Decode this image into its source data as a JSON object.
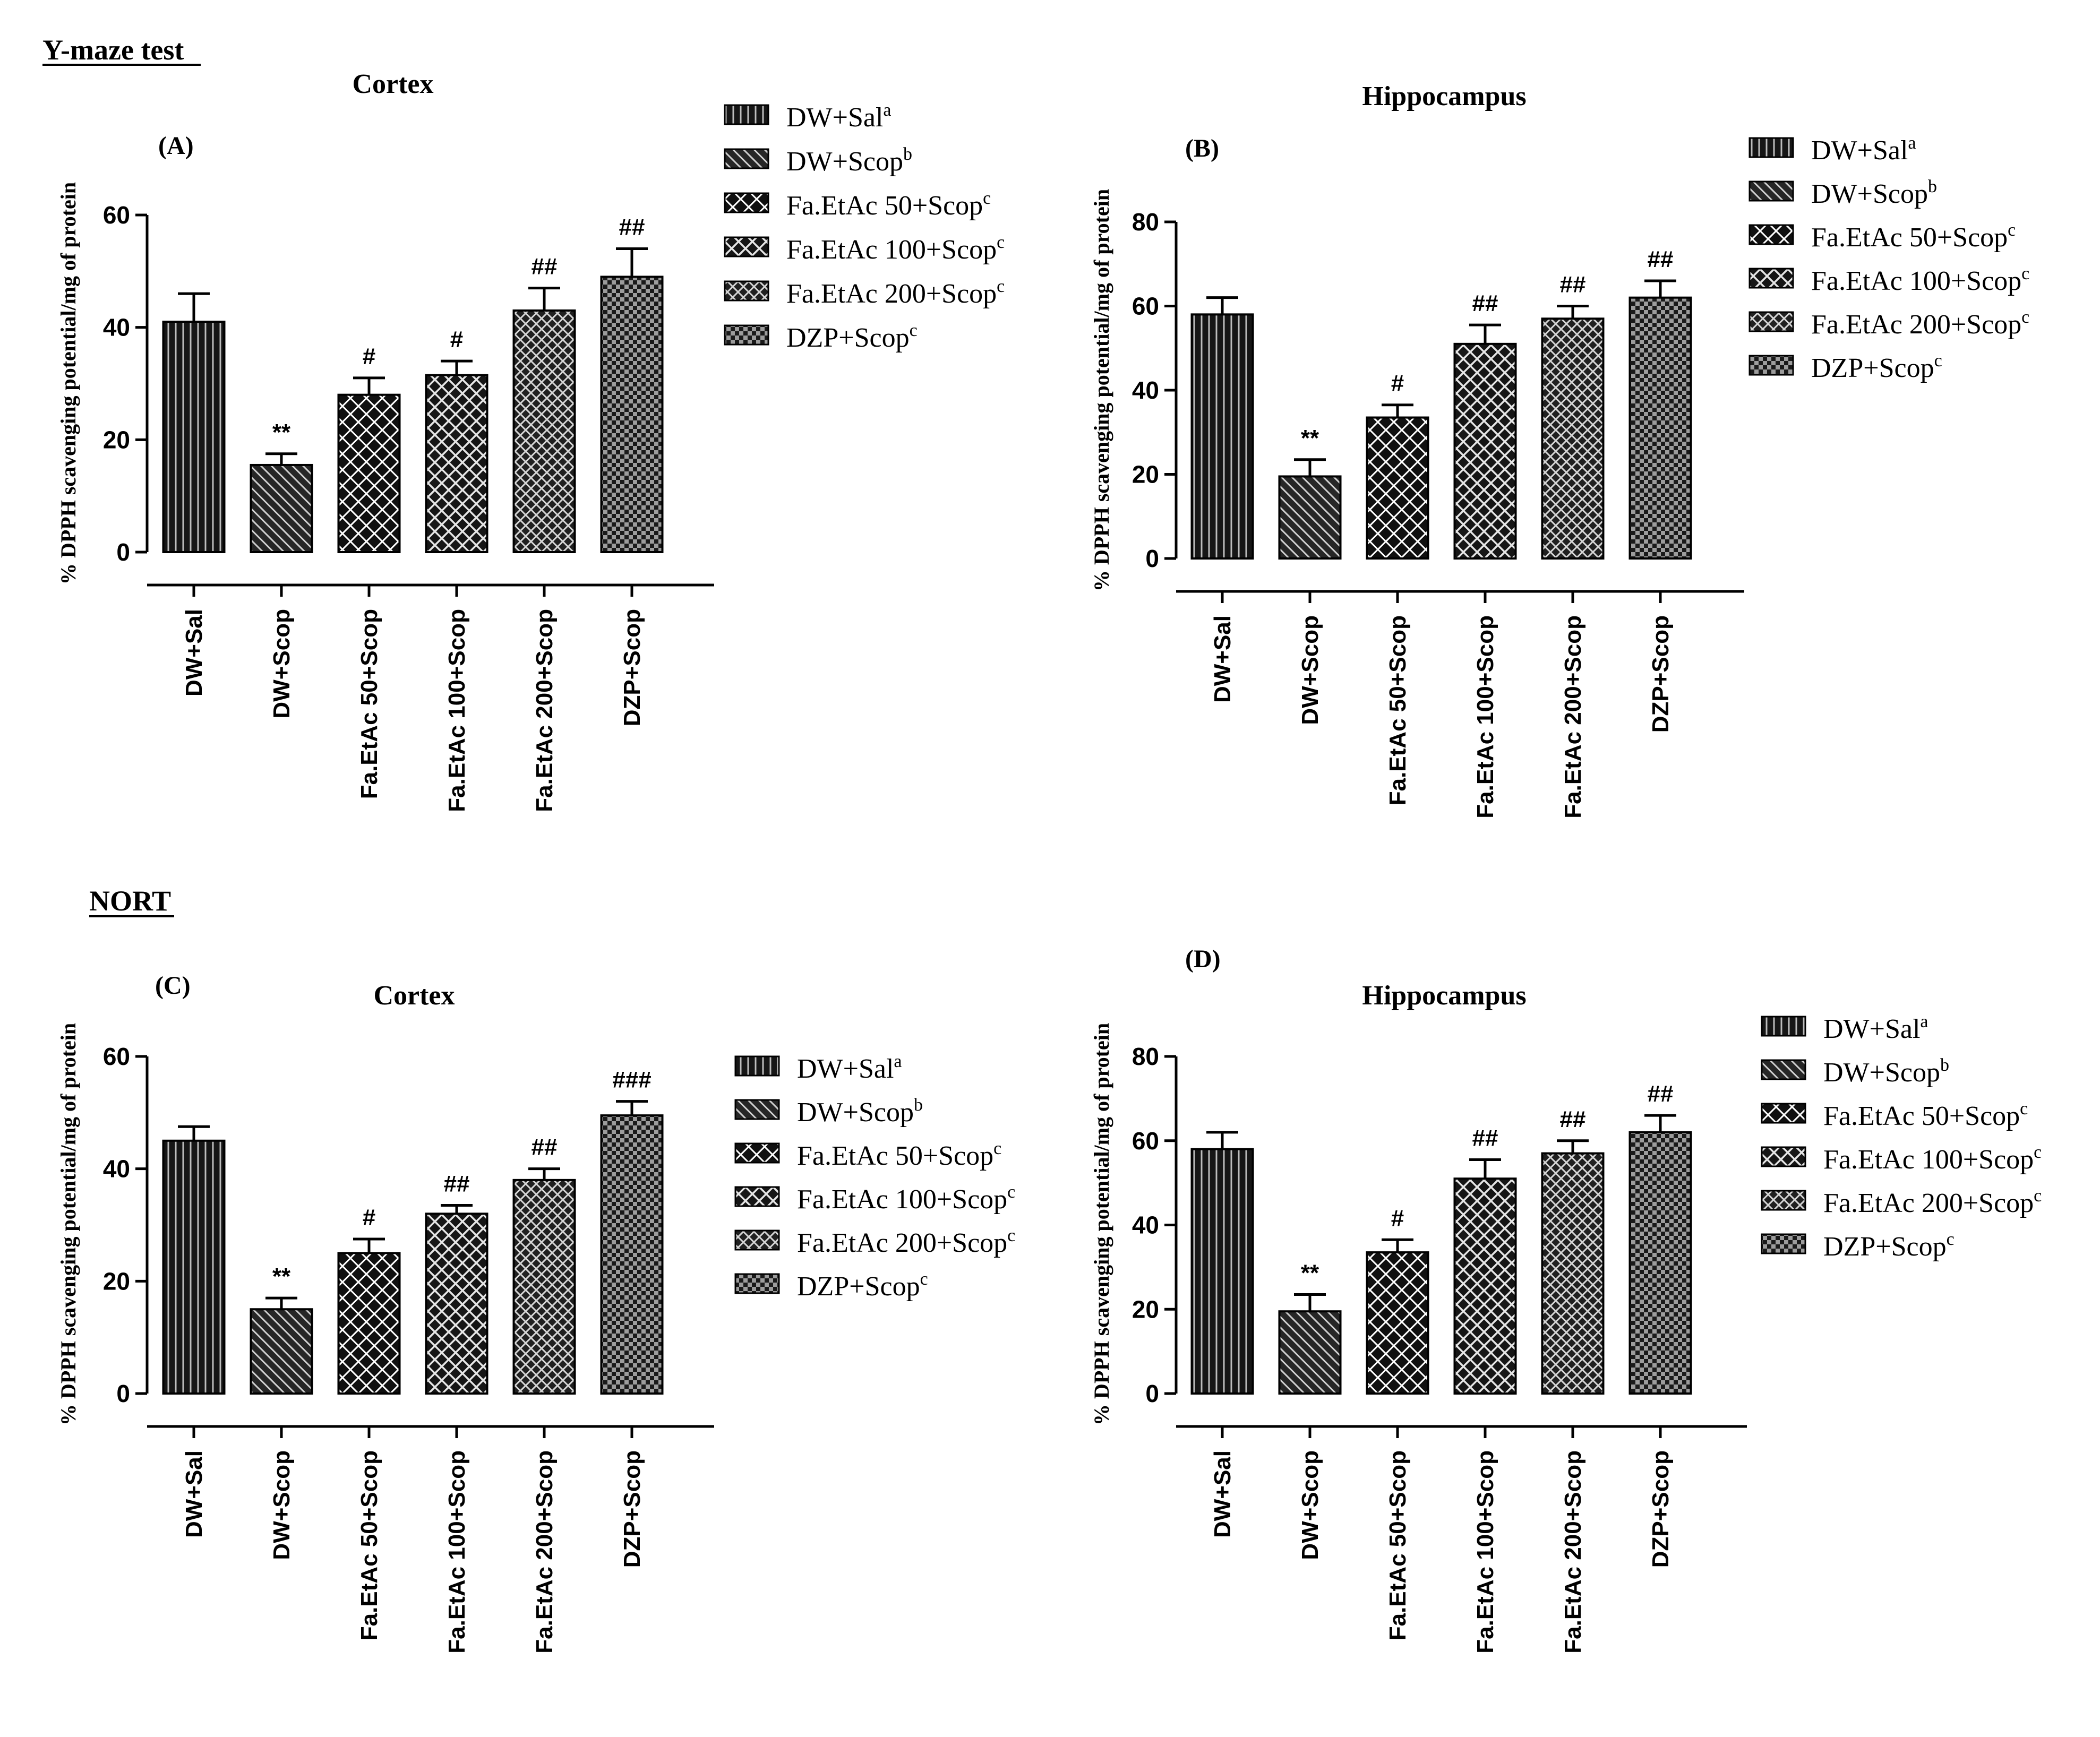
{
  "sections": [
    {
      "label": "Y-maze test"
    },
    {
      "label": "NORT"
    }
  ],
  "chart_data": [
    {
      "type": "bar",
      "panel": "(A)",
      "title": "Cortex",
      "ylabel": "% DPPH scavenging potential/mg of protein",
      "xlabel": "",
      "ylim": [
        0,
        60
      ],
      "yticks": [
        0,
        20,
        40,
        60
      ],
      "categories": [
        "DW+Sal",
        "DW+Scop",
        "Fa.EtAc 50+Scop",
        "Fa.EtAc 100+Scop",
        "Fa.EtAc 200+Scop",
        "DZP+Scop"
      ],
      "values": [
        41,
        15.5,
        28,
        31.5,
        43,
        49
      ],
      "errors": [
        5,
        2,
        3,
        2.5,
        4,
        5
      ],
      "significance": [
        "",
        "**",
        "#",
        "#",
        "##",
        "##"
      ],
      "legend": [
        {
          "label": "DW+Sal",
          "sup": "a"
        },
        {
          "label": "DW+Scop",
          "sup": "b"
        },
        {
          "label": "Fa.EtAc 50+Scop",
          "sup": "c"
        },
        {
          "label": "Fa.EtAc 100+Scop",
          "sup": "c"
        },
        {
          "label": "Fa.EtAc 200+Scop",
          "sup": "c"
        },
        {
          "label": "DZP+Scop",
          "sup": "c"
        }
      ]
    },
    {
      "type": "bar",
      "panel": "(B)",
      "title": "Hippocampus",
      "ylabel": "% DPPH scavenging potential/mg of protein",
      "xlabel": "",
      "ylim": [
        0,
        80
      ],
      "yticks": [
        0,
        20,
        40,
        60,
        80
      ],
      "categories": [
        "DW+Sal",
        "DW+Scop",
        "Fa.EtAc 50+Scop",
        "Fa.EtAc 100+Scop",
        "Fa.EtAc 200+Scop",
        "DZP+Scop"
      ],
      "values": [
        58,
        19.5,
        33.5,
        51,
        57,
        62
      ],
      "errors": [
        4,
        4,
        3,
        4.5,
        3,
        4
      ],
      "significance": [
        "",
        "**",
        "#",
        "##",
        "##",
        "##"
      ],
      "legend": [
        {
          "label": "DW+Sal",
          "sup": "a"
        },
        {
          "label": "DW+Scop",
          "sup": "b"
        },
        {
          "label": "Fa.EtAc 50+Scop",
          "sup": "c"
        },
        {
          "label": "Fa.EtAc 100+Scop",
          "sup": "c"
        },
        {
          "label": "Fa.EtAc 200+Scop",
          "sup": "c"
        },
        {
          "label": "DZP+Scop",
          "sup": "c"
        }
      ]
    },
    {
      "type": "bar",
      "panel": "(C)",
      "title": "Cortex",
      "ylabel": "% DPPH scavenging potential/mg of protein",
      "xlabel": "",
      "ylim": [
        0,
        60
      ],
      "yticks": [
        0,
        20,
        40,
        60
      ],
      "categories": [
        "DW+Sal",
        "DW+Scop",
        "Fa.EtAc 50+Scop",
        "Fa.EtAc 100+Scop",
        "Fa.EtAc 200+Scop",
        "DZP+Scop"
      ],
      "values": [
        45,
        15,
        25,
        32,
        38,
        49.5
      ],
      "errors": [
        2.5,
        2,
        2.5,
        1.5,
        2,
        2.5
      ],
      "significance": [
        "",
        "**",
        "#",
        "##",
        "##",
        "###"
      ],
      "legend": [
        {
          "label": "DW+Sal",
          "sup": "a"
        },
        {
          "label": "DW+Scop",
          "sup": "b"
        },
        {
          "label": "Fa.EtAc 50+Scop",
          "sup": "c"
        },
        {
          "label": "Fa.EtAc 100+Scop",
          "sup": "c"
        },
        {
          "label": "Fa.EtAc 200+Scop",
          "sup": "c"
        },
        {
          "label": "DZP+Scop",
          "sup": "c"
        }
      ]
    },
    {
      "type": "bar",
      "panel": "(D)",
      "title": "Hippocampus",
      "ylabel": "% DPPH scavenging potential/mg of protein",
      "xlabel": "",
      "ylim": [
        0,
        80
      ],
      "yticks": [
        0,
        20,
        40,
        60,
        80
      ],
      "categories": [
        "DW+Sal",
        "DW+Scop",
        "Fa.EtAc 50+Scop",
        "Fa.EtAc 100+Scop",
        "Fa.EtAc 200+Scop",
        "DZP+Scop"
      ],
      "values": [
        58,
        19.5,
        33.5,
        51,
        57,
        62
      ],
      "errors": [
        4,
        4,
        3,
        4.5,
        3,
        4
      ],
      "significance": [
        "",
        "**",
        "#",
        "##",
        "##",
        "##"
      ],
      "legend": [
        {
          "label": "DW+Sal",
          "sup": "a"
        },
        {
          "label": "DW+Scop",
          "sup": "b"
        },
        {
          "label": "Fa.EtAc 50+Scop",
          "sup": "c"
        },
        {
          "label": "Fa.EtAc 100+Scop",
          "sup": "c"
        },
        {
          "label": "Fa.EtAc 200+Scop",
          "sup": "c"
        },
        {
          "label": "DZP+Scop",
          "sup": "c"
        }
      ]
    }
  ]
}
